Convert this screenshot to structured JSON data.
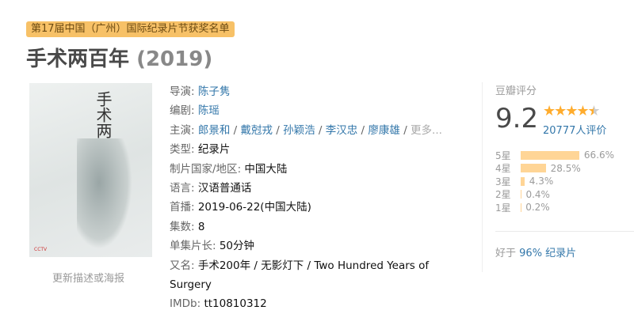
{
  "badge": "第17届中国（广州）国际纪录片节获奖名单",
  "title": "手术两百年",
  "year": "(2019)",
  "poster": {
    "title_art": "手术两百年",
    "logo": "CCTV"
  },
  "update_link": "更新描述或海报",
  "info": {
    "director": {
      "label": "导演",
      "value": "陈子隽"
    },
    "writer": {
      "label": "编剧",
      "value": "陈瑶"
    },
    "cast": {
      "label": "主演",
      "values": [
        "郎景和",
        "戴尅戎",
        "孙颖浩",
        "李汉忠",
        "廖康雄"
      ],
      "more": "更多..."
    },
    "genre": {
      "label": "类型",
      "value": "纪录片"
    },
    "country": {
      "label": "制片国家/地区",
      "value": "中国大陆"
    },
    "language": {
      "label": "语言",
      "value": "汉语普通话"
    },
    "premiere": {
      "label": "首播",
      "value": "2019-06-22(中国大陆)"
    },
    "episodes": {
      "label": "集数",
      "value": "8"
    },
    "runtime": {
      "label": "单集片长",
      "value": "50分钟"
    },
    "aka": {
      "label": "又名",
      "value": "手术200年 / 无影灯下 / Two Hundred Years of Surgery"
    },
    "imdb": {
      "label": "IMDb",
      "value": "tt10810312"
    }
  },
  "rating": {
    "title": "豆瓣评分",
    "score": "9.2",
    "stars": 4.5,
    "count": "20777人评价",
    "breakdown": [
      {
        "label": "5星",
        "percent": 66.6,
        "text": "66.6%"
      },
      {
        "label": "4星",
        "percent": 28.5,
        "text": "28.5%"
      },
      {
        "label": "3星",
        "percent": 4.3,
        "text": "4.3%"
      },
      {
        "label": "2星",
        "percent": 0.4,
        "text": "0.4%"
      },
      {
        "label": "1星",
        "percent": 0.2,
        "text": "0.2%"
      }
    ],
    "better_prefix": "好于",
    "better_link": "96% 纪录片"
  },
  "colors": {
    "link": "#3377aa",
    "star": "#ffac2d",
    "bar": "#ffd596",
    "badge": "#f7c167"
  }
}
